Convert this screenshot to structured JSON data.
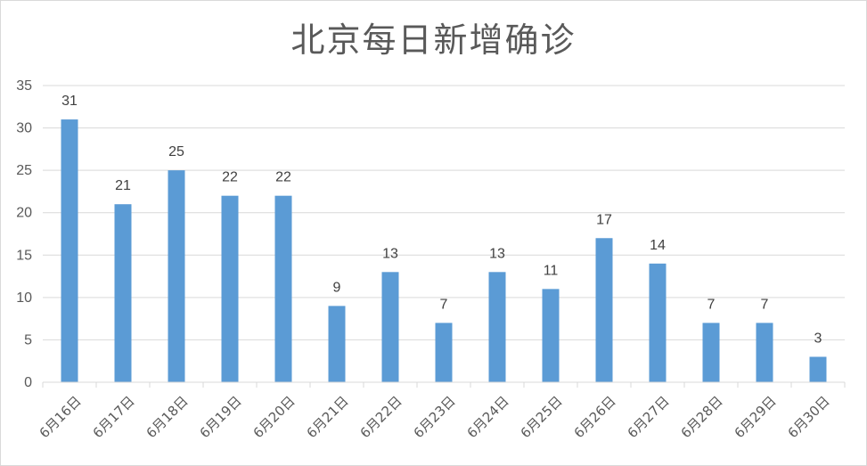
{
  "chart_data": {
    "type": "bar",
    "title": "北京每日新增确诊",
    "categories": [
      "6月16日",
      "6月17日",
      "6月18日",
      "6月19日",
      "6月20日",
      "6月21日",
      "6月22日",
      "6月23日",
      "6月24日",
      "6月25日",
      "6月26日",
      "6月27日",
      "6月28日",
      "6月29日",
      "6月30日"
    ],
    "values": [
      31,
      21,
      25,
      22,
      22,
      9,
      13,
      7,
      13,
      11,
      17,
      14,
      7,
      7,
      3
    ],
    "xlabel": "",
    "ylabel": "",
    "ylim": [
      0,
      35
    ],
    "yticks": [
      "0",
      "5",
      "10",
      "15",
      "20",
      "25",
      "30",
      "35"
    ],
    "grid": true,
    "legend": "none",
    "bar_color": "#5b9bd5",
    "grid_color": "#d9d9d9"
  }
}
